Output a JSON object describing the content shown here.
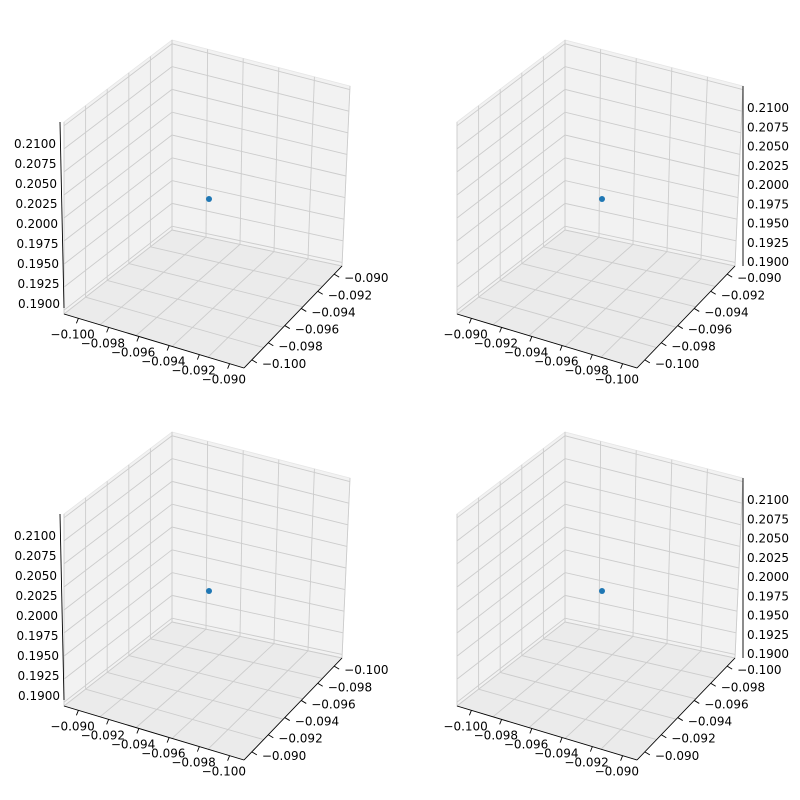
{
  "figure": {
    "background": "#ffffff",
    "pane_color": "#f2f2f2",
    "pane_edge_color": "#e6e6e6",
    "grid_color": "#cccccc",
    "point_color": "#1f77b4"
  },
  "chart_data": [
    {
      "type": "scatter",
      "title": "",
      "xlabel": "",
      "ylabel": "",
      "zlabel": "",
      "points": [
        {
          "x": -0.095,
          "y": -0.095,
          "z": 0.2
        }
      ],
      "x_ticks": [
        "−0.100",
        "−0.098",
        "−0.096",
        "−0.094",
        "−0.092",
        "−0.090"
      ],
      "y_ticks": [
        "−0.100",
        "−0.098",
        "−0.096",
        "−0.094",
        "−0.092",
        "−0.090"
      ],
      "z_ticks": [
        "0.1900",
        "0.1925",
        "0.1950",
        "0.1975",
        "0.2000",
        "0.2025",
        "0.2050",
        "0.2075",
        "0.2100"
      ],
      "z_axis_side": "left",
      "grid": true
    },
    {
      "type": "scatter",
      "title": "",
      "xlabel": "",
      "ylabel": "",
      "zlabel": "",
      "points": [
        {
          "x": -0.095,
          "y": -0.095,
          "z": 0.2
        }
      ],
      "x_ticks": [
        "−0.090",
        "−0.092",
        "−0.094",
        "−0.096",
        "−0.098",
        "−0.100"
      ],
      "y_ticks": [
        "−0.100",
        "−0.098",
        "−0.096",
        "−0.094",
        "−0.092",
        "−0.090"
      ],
      "z_ticks": [
        "0.1900",
        "0.1925",
        "0.1950",
        "0.1975",
        "0.2000",
        "0.2025",
        "0.2050",
        "0.2075",
        "0.2100"
      ],
      "z_axis_side": "right",
      "grid": true
    },
    {
      "type": "scatter",
      "title": "",
      "xlabel": "",
      "ylabel": "",
      "zlabel": "",
      "points": [
        {
          "x": -0.095,
          "y": -0.095,
          "z": 0.2
        }
      ],
      "x_ticks": [
        "−0.090",
        "−0.092",
        "−0.094",
        "−0.096",
        "−0.098",
        "−0.100"
      ],
      "y_ticks": [
        "−0.090",
        "−0.092",
        "−0.094",
        "−0.096",
        "−0.098",
        "−0.100"
      ],
      "z_ticks": [
        "0.1900",
        "0.1925",
        "0.1950",
        "0.1975",
        "0.2000",
        "0.2025",
        "0.2050",
        "0.2075",
        "0.2100"
      ],
      "z_axis_side": "left",
      "grid": true
    },
    {
      "type": "scatter",
      "title": "",
      "xlabel": "",
      "ylabel": "",
      "zlabel": "",
      "points": [
        {
          "x": -0.095,
          "y": -0.095,
          "z": 0.2
        }
      ],
      "x_ticks": [
        "−0.100",
        "−0.098",
        "−0.096",
        "−0.094",
        "−0.092",
        "−0.090"
      ],
      "y_ticks": [
        "−0.090",
        "−0.092",
        "−0.094",
        "−0.096",
        "−0.098",
        "−0.100"
      ],
      "z_ticks": [
        "0.1900",
        "0.1925",
        "0.1950",
        "0.1975",
        "0.2000",
        "0.2025",
        "0.2050",
        "0.2075",
        "0.2100"
      ],
      "z_axis_side": "right",
      "grid": true
    }
  ]
}
